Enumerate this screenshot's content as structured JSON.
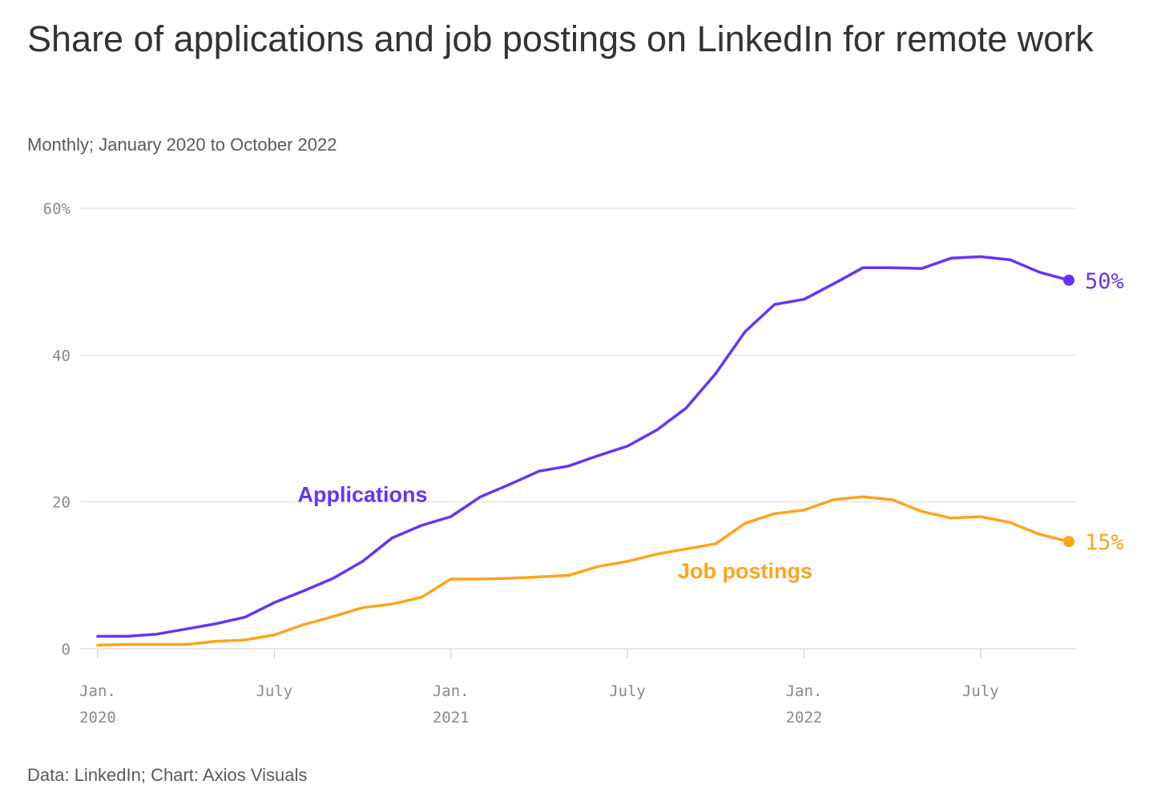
{
  "title": "Share of applications and job postings on LinkedIn for remote work",
  "subtitle": "Monthly; January 2020 to October 2022",
  "source": "Data: LinkedIn; Chart: Axios Visuals",
  "colors": {
    "applications": "#6633ff",
    "job_postings": "#ffa41b",
    "grid": "#dddddd",
    "axis": "#cccccc"
  },
  "chart_data": {
    "type": "line",
    "ylim": [
      0,
      60
    ],
    "y_ticks": [
      {
        "value": 0,
        "label": "0"
      },
      {
        "value": 20,
        "label": "20"
      },
      {
        "value": 40,
        "label": "40"
      },
      {
        "value": 60,
        "label": "60%"
      }
    ],
    "x_ticks": [
      {
        "date": "2020-01",
        "label": "Jan.",
        "year": "2020"
      },
      {
        "date": "2020-07",
        "label": "July",
        "year": ""
      },
      {
        "date": "2021-01",
        "label": "Jan.",
        "year": "2021"
      },
      {
        "date": "2021-07",
        "label": "July",
        "year": ""
      },
      {
        "date": "2022-01",
        "label": "Jan.",
        "year": "2022"
      },
      {
        "date": "2022-07",
        "label": "July",
        "year": ""
      }
    ],
    "x": [
      "2020-01",
      "2020-02",
      "2020-03",
      "2020-04",
      "2020-05",
      "2020-06",
      "2020-07",
      "2020-08",
      "2020-09",
      "2020-10",
      "2020-11",
      "2020-12",
      "2021-01",
      "2021-02",
      "2021-03",
      "2021-04",
      "2021-05",
      "2021-06",
      "2021-07",
      "2021-08",
      "2021-09",
      "2021-10",
      "2021-11",
      "2021-12",
      "2022-01",
      "2022-02",
      "2022-03",
      "2022-04",
      "2022-05",
      "2022-06",
      "2022-07",
      "2022-08",
      "2022-09",
      "2022-10"
    ],
    "series": [
      {
        "name": "Applications",
        "color": "#6633ff",
        "end_label": "50%",
        "values": [
          1.7,
          1.7,
          2.0,
          2.7,
          3.4,
          4.3,
          6.3,
          7.9,
          9.6,
          11.9,
          15.1,
          16.8,
          18.0,
          20.7,
          22.4,
          24.2,
          24.9,
          26.3,
          27.6,
          29.8,
          32.8,
          37.5,
          43.2,
          46.9,
          47.6,
          49.7,
          51.9,
          51.9,
          51.8,
          53.2,
          53.4,
          53.0,
          51.3,
          50.2
        ],
        "label_anchor": {
          "date": "2020-10",
          "value": 20.0
        }
      },
      {
        "name": "Job postings",
        "color": "#ffa41b",
        "end_label": "15%",
        "values": [
          0.5,
          0.6,
          0.6,
          0.6,
          1.0,
          1.2,
          1.9,
          3.3,
          4.4,
          5.6,
          6.1,
          7.0,
          9.5,
          9.5,
          9.6,
          9.8,
          10.0,
          11.2,
          11.9,
          12.9,
          13.6,
          14.3,
          17.1,
          18.4,
          18.9,
          20.3,
          20.7,
          20.3,
          18.7,
          17.8,
          18.0,
          17.2,
          15.6,
          14.6
        ],
        "label_anchor": {
          "date": "2021-11",
          "value": 9.6
        }
      }
    ],
    "grid": true,
    "legend": "direct labels"
  }
}
